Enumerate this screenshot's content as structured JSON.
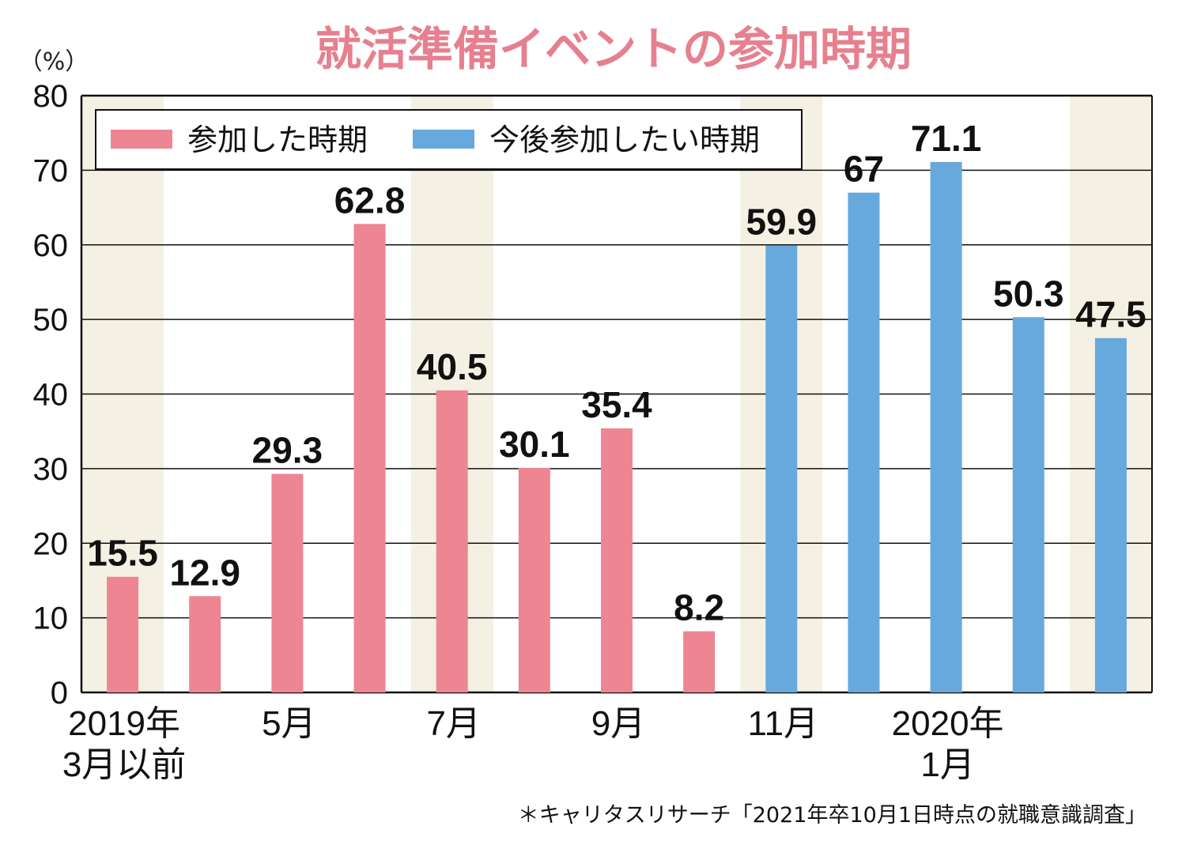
{
  "chart_data": {
    "type": "bar",
    "title": "就活準備イベントの参加時期",
    "unit_label": "（%）",
    "ylim": [
      0,
      80
    ],
    "yticks": [
      "0",
      "10",
      "20",
      "30",
      "40",
      "50",
      "60",
      "70",
      "80"
    ],
    "grid": true,
    "legend_position": "top-left",
    "series": [
      {
        "name": "参加した時期",
        "color": "#ee8593"
      },
      {
        "name": "今後参加したい時期",
        "color": "#67a9dc"
      }
    ],
    "bars": [
      {
        "series": 0,
        "value": 15.5,
        "label": "15.5"
      },
      {
        "series": 0,
        "value": 12.9,
        "label": "12.9"
      },
      {
        "series": 0,
        "value": 29.3,
        "label": "29.3"
      },
      {
        "series": 0,
        "value": 62.8,
        "label": "62.8"
      },
      {
        "series": 0,
        "value": 40.5,
        "label": "40.5"
      },
      {
        "series": 0,
        "value": 30.1,
        "label": "30.1"
      },
      {
        "series": 0,
        "value": 35.4,
        "label": "35.4"
      },
      {
        "series": 0,
        "value": 8.2,
        "label": "8.2"
      },
      {
        "series": 1,
        "value": 59.9,
        "label": "59.9"
      },
      {
        "series": 1,
        "value": 67,
        "label": "67"
      },
      {
        "series": 1,
        "value": 71.1,
        "label": "71.1"
      },
      {
        "series": 1,
        "value": 50.3,
        "label": "50.3"
      },
      {
        "series": 1,
        "value": 47.5,
        "label": "47.5"
      }
    ],
    "xlabels": [
      {
        "lines": [
          "2019年",
          "3月以前"
        ]
      },
      {
        "lines": [
          "5月"
        ]
      },
      {
        "lines": [
          "7月"
        ]
      },
      {
        "lines": [
          "9月"
        ]
      },
      {
        "lines": [
          "11月"
        ]
      },
      {
        "lines": [
          "2020年",
          "1月"
        ]
      }
    ],
    "source": "＊キャリタスリサーチ「2021年卒10月1日時点の就職意識調査」",
    "colors": {
      "title": "#e6808f",
      "band": "#f4f1e4",
      "grid": "#111111"
    }
  }
}
